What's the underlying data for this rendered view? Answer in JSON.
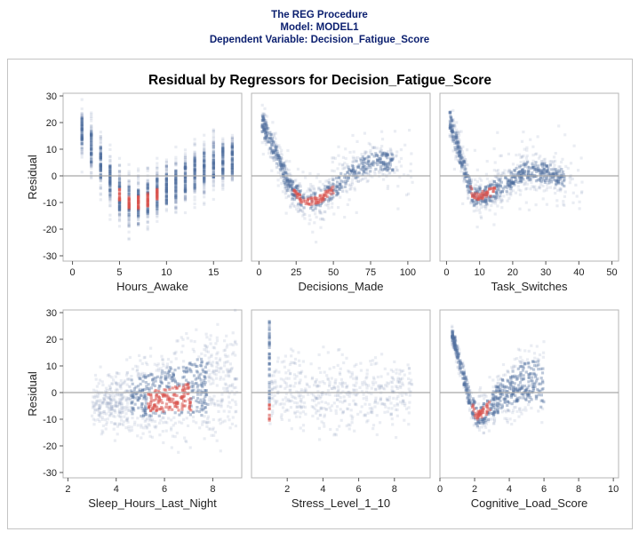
{
  "header": {
    "line1": "The REG Procedure",
    "line2": "Model: MODEL1",
    "line3": "Dependent Variable: Decision_Fatigue_Score"
  },
  "colors": {
    "header": "#0b1f6f",
    "density_low": "#dce4f0",
    "density_mid": "#4f6f9f",
    "density_high": "#d9534f",
    "refline": "#a8a8a8"
  },
  "chart_data": {
    "type": "scatter",
    "subtype": "heatmap-density residual panel",
    "title": "Residual by Regressors for Decision_Fatigue_Score",
    "ylabel": "Residual",
    "ylim": [
      -32,
      31
    ],
    "yticks": [
      30,
      20,
      10,
      0,
      -10,
      -20,
      -30
    ],
    "reference_line_y": 0,
    "panels": [
      {
        "xlabel": "Hours_Awake",
        "xlim": [
          -1,
          18
        ],
        "xticks": [
          0,
          5,
          10,
          15
        ],
        "pattern": "discrete_u",
        "x_values": [
          1,
          2,
          3,
          4,
          5,
          6,
          7,
          8,
          9,
          10,
          11,
          12,
          13,
          14,
          15,
          16,
          17
        ],
        "centers": [
          16,
          11,
          5,
          -2,
          -7,
          -10,
          -10,
          -9,
          -7,
          -5,
          -3,
          -1,
          1,
          3,
          5,
          6,
          6
        ]
      },
      {
        "xlabel": "Decisions_Made",
        "xlim": [
          -5,
          115
        ],
        "xticks": [
          0,
          25,
          50,
          75,
          100
        ],
        "pattern": "curve_u",
        "curve": [
          [
            2,
            20
          ],
          [
            10,
            10
          ],
          [
            20,
            -3
          ],
          [
            30,
            -10
          ],
          [
            40,
            -9
          ],
          [
            50,
            -5
          ],
          [
            60,
            0
          ],
          [
            70,
            4
          ],
          [
            80,
            6
          ],
          [
            90,
            5
          ]
        ]
      },
      {
        "xlabel": "Task_Switches",
        "xlim": [
          -2,
          52
        ],
        "xticks": [
          0,
          10,
          20,
          30,
          40,
          50
        ],
        "pattern": "curve_u",
        "curve": [
          [
            1,
            21
          ],
          [
            4,
            8
          ],
          [
            8,
            -8
          ],
          [
            12,
            -7
          ],
          [
            18,
            -3
          ],
          [
            24,
            2
          ],
          [
            30,
            1
          ],
          [
            36,
            -1
          ]
        ]
      },
      {
        "xlabel": "Sleep_Hours_Last_Night",
        "xlim": [
          1.8,
          9.2
        ],
        "xticks": [
          2,
          4,
          6,
          8
        ],
        "pattern": "cloud",
        "x_range": [
          3,
          9
        ],
        "center": [
          6.2,
          -5
        ]
      },
      {
        "xlabel": "Stress_Level_1_10",
        "xlim": [
          0,
          10
        ],
        "xticks": [
          2,
          4,
          6,
          8
        ],
        "pattern": "sparse",
        "x_range": [
          1,
          9
        ],
        "spike_x": 1,
        "spike_range": [
          -12,
          28
        ]
      },
      {
        "xlabel": "Cognitive_Load_Score",
        "xlim": [
          0,
          10.3
        ],
        "xticks": [
          0,
          2,
          4,
          6,
          8,
          10
        ],
        "pattern": "cognitive",
        "curve": [
          [
            0.7,
            22
          ],
          [
            1.2,
            10
          ],
          [
            1.7,
            -2
          ],
          [
            2.1,
            -9
          ],
          [
            2.6,
            -7
          ],
          [
            3.2,
            -3
          ],
          [
            4,
            1
          ],
          [
            5,
            4
          ],
          [
            6,
            3
          ]
        ]
      }
    ]
  }
}
